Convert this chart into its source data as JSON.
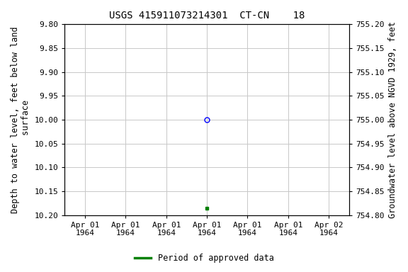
{
  "title": "USGS 415911073214301  CT-CN    18",
  "ylabel_left": "Depth to water level, feet below land\n surface",
  "ylabel_right": "Groundwater level above NGVD 1929, feet",
  "ylim_left": [
    9.8,
    10.2
  ],
  "ylim_right": [
    754.8,
    755.2
  ],
  "y_ticks_left": [
    9.8,
    9.85,
    9.9,
    9.95,
    10.0,
    10.05,
    10.1,
    10.15,
    10.2
  ],
  "y_ticks_right": [
    754.8,
    754.85,
    754.9,
    754.95,
    755.0,
    755.05,
    755.1,
    755.15,
    755.2
  ],
  "data_point_circle": {
    "x": 3.0,
    "depth": 10.0,
    "color": "#0000ff",
    "marker": "o",
    "fillstyle": "none",
    "markersize": 5
  },
  "data_point_square": {
    "x": 3.0,
    "depth": 10.185,
    "color": "#008000",
    "marker": "s",
    "fillstyle": "full",
    "markersize": 3.5
  },
  "x_ticks": [
    0,
    1,
    2,
    3,
    4,
    5,
    6
  ],
  "x_tick_labels": [
    "Apr 01\n1964",
    "Apr 01\n1964",
    "Apr 01\n1964",
    "Apr 01\n1964",
    "Apr 01\n1964",
    "Apr 01\n1964",
    "Apr 02\n1964"
  ],
  "xlim": [
    -0.5,
    6.5
  ],
  "background_color": "#ffffff",
  "grid_color": "#c8c8c8",
  "legend_label": "Period of approved data",
  "legend_color": "#008000",
  "title_fontsize": 10,
  "axis_label_fontsize": 8.5,
  "tick_fontsize": 8
}
